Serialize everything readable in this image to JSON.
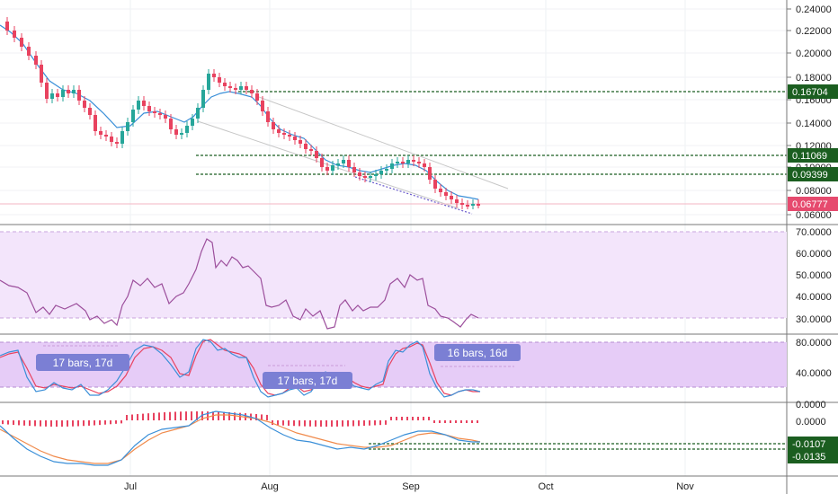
{
  "time_axis": {
    "labels": [
      "Jul",
      "Aug",
      "Sep",
      "Oct",
      "Nov"
    ]
  },
  "price_pane": {
    "ticks": [
      "0.24000",
      "0.22000",
      "0.20000",
      "0.18000",
      "0.16000",
      "0.14000",
      "0.12000",
      "0.10000",
      "0.08000",
      "0.06000"
    ],
    "tags": [
      {
        "value": "0.16704",
        "color": "#1b5e20"
      },
      {
        "value": "0.11069",
        "color": "#1b5e20"
      },
      {
        "value": "0.09399",
        "color": "#1b5e20"
      },
      {
        "value": "0.06777",
        "color": "#e64a6e"
      }
    ],
    "colors": {
      "up": "#26a69a",
      "down": "#e8425f",
      "ma": "#3a8fd8",
      "level": "#1b5e20",
      "trend": "#c7c7c7",
      "channel_bottom": "#6a5acd"
    }
  },
  "rsi_pane": {
    "ticks": [
      "70.0000",
      "60.0000",
      "50.0000",
      "40.0000",
      "30.0000"
    ],
    "colors": {
      "line": "#9c4f9c",
      "band": "#f3e5fb"
    }
  },
  "stoch_pane": {
    "ticks": [
      "80.0000",
      "40.0000",
      "0.0000"
    ],
    "annotations": [
      "17 bars, 17d",
      "17 bars, 17d",
      "16 bars, 16d"
    ],
    "colors": {
      "k": "#3a8fd8",
      "d": "#e8425f",
      "band": "#e6ccf7",
      "note": "#7b7fd4"
    }
  },
  "macd_pane": {
    "ticks": [
      "0.0000"
    ],
    "tags": [
      {
        "value": "-0.0107",
        "color": "#1b5e20"
      },
      {
        "value": "-0.0135",
        "color": "#1b5e20"
      }
    ],
    "colors": {
      "hist": "#e8425f",
      "macd": "#3a8fd8",
      "signal": "#f08a4b"
    }
  }
}
